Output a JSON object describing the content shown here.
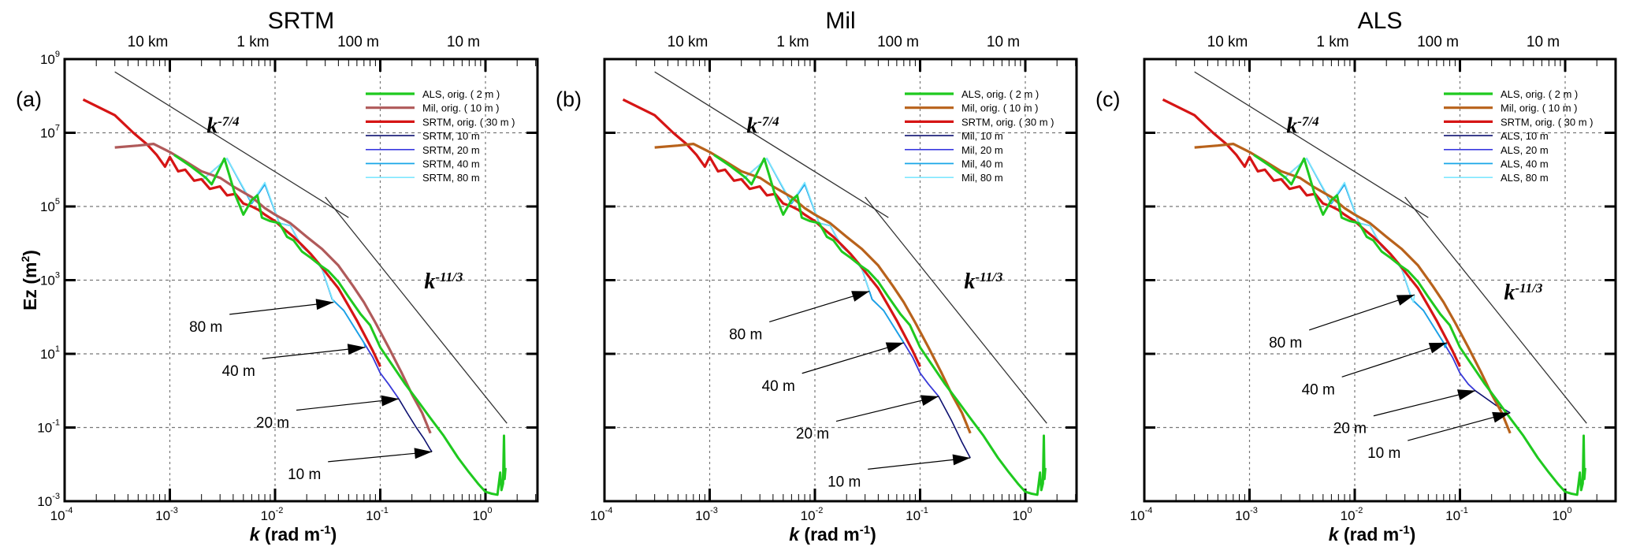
{
  "chart_data": [
    {
      "type": "line",
      "panel": "(a)",
      "title": "SRTM",
      "xlabel": "k (rad m-1)",
      "ylabel": "Ez (m2)",
      "xscale": "log",
      "yscale": "log",
      "xlim": [
        0.0001,
        3.1
      ],
      "ylim": [
        0.001,
        1000000000
      ],
      "grid": true,
      "legend_position": "top-right",
      "x_ticks": [
        "10^-4",
        "10^-3",
        "10^-2",
        "10^-1",
        "10^0"
      ],
      "y_ticks": [
        "10^-3",
        "10^-1",
        "10^1",
        "10^3",
        "10^5",
        "10^7",
        "10^9"
      ],
      "top_axis_labels": [
        "10 km",
        "1 km",
        "100 m",
        "10 m"
      ],
      "series_ref": "a",
      "legend": [
        "ALS, orig. ( 2 m )",
        "Mil, orig. ( 10 m )",
        "SRTM, orig. ( 30 m )",
        "SRTM, 10 m",
        "SRTM, 20 m",
        "SRTM, 40 m",
        "SRTM, 80 m"
      ],
      "slope_labels": [
        {
          "base": "k",
          "exp": "-7/4",
          "at": [
            0.0032,
            10000000
          ]
        },
        {
          "base": "k",
          "exp": "-11/3",
          "at": [
            0.4,
            600
          ]
        }
      ],
      "annotations": [
        {
          "text": "80 m",
          "arrow_to": [
            0.036,
            250
          ],
          "text_at": [
            0.0022,
            40
          ]
        },
        {
          "text": "40 m",
          "arrow_to": [
            0.072,
            15
          ],
          "text_at": [
            0.0045,
            2.5
          ]
        },
        {
          "text": "20 m",
          "arrow_to": [
            0.15,
            0.6
          ],
          "text_at": [
            0.0095,
            0.1
          ]
        },
        {
          "text": "10 m",
          "arrow_to": [
            0.31,
            0.022
          ],
          "text_at": [
            0.019,
            0.004
          ]
        }
      ]
    },
    {
      "type": "line",
      "panel": "(b)",
      "title": "Mil",
      "xlabel": "k (rad m-1)",
      "ylabel": "",
      "xscale": "log",
      "yscale": "log",
      "xlim": [
        0.0001,
        3.1
      ],
      "ylim": [
        0.001,
        1000000000
      ],
      "grid": true,
      "legend_position": "top-right",
      "x_ticks": [
        "10^-4",
        "10^-3",
        "10^-2",
        "10^-1",
        "10^0"
      ],
      "top_axis_labels": [
        "10 km",
        "1 km",
        "100 m",
        "10 m"
      ],
      "series_ref": "b",
      "legend": [
        "ALS, orig. ( 2 m )",
        "Mil, orig. ( 10 m )",
        "SRTM, orig. ( 30 m )",
        "Mil, 10 m",
        "Mil, 20 m",
        "Mil, 40 m",
        "Mil, 80 m"
      ],
      "slope_labels": [
        {
          "base": "k",
          "exp": "-7/4",
          "at": [
            0.0032,
            10000000
          ]
        },
        {
          "base": "k",
          "exp": "-11/3",
          "at": [
            0.4,
            600
          ]
        }
      ],
      "annotations": [
        {
          "text": "80 m",
          "arrow_to": [
            0.033,
            500
          ],
          "text_at": [
            0.0022,
            25
          ]
        },
        {
          "text": "40 m",
          "arrow_to": [
            0.07,
            20
          ],
          "text_at": [
            0.0045,
            1
          ]
        },
        {
          "text": "20 m",
          "arrow_to": [
            0.15,
            0.7
          ],
          "text_at": [
            0.0095,
            0.05
          ]
        },
        {
          "text": "10 m",
          "arrow_to": [
            0.3,
            0.015
          ],
          "text_at": [
            0.019,
            0.0025
          ]
        }
      ]
    },
    {
      "type": "line",
      "panel": "(c)",
      "title": "ALS",
      "xlabel": "k (rad m-1)",
      "ylabel": "",
      "xscale": "log",
      "yscale": "log",
      "xlim": [
        0.0001,
        3.1
      ],
      "ylim": [
        0.001,
        1000000000
      ],
      "grid": true,
      "legend_position": "top-right",
      "x_ticks": [
        "10^-4",
        "10^-3",
        "10^-2",
        "10^-1",
        "10^0"
      ],
      "top_axis_labels": [
        "10 km",
        "1 km",
        "100 m",
        "10 m"
      ],
      "series_ref": "c",
      "legend": [
        "ALS, orig. ( 2 m )",
        "Mil, orig. ( 10 m )",
        "SRTM, orig. ( 30 m )",
        "ALS, 10 m",
        "ALS, 20 m",
        "ALS, 40 m",
        "ALS, 80 m"
      ],
      "slope_labels": [
        {
          "base": "k",
          "exp": "-7/4",
          "at": [
            0.0032,
            10000000
          ]
        },
        {
          "base": "k",
          "exp": "-11/3",
          "at": [
            0.4,
            300
          ]
        }
      ],
      "annotations": [
        {
          "text": "80 m",
          "arrow_to": [
            0.037,
            400
          ],
          "text_at": [
            0.0022,
            15
          ]
        },
        {
          "text": "40 m",
          "arrow_to": [
            0.075,
            20
          ],
          "text_at": [
            0.0045,
            0.8
          ]
        },
        {
          "text": "20 m",
          "arrow_to": [
            0.14,
            1
          ],
          "text_at": [
            0.009,
            0.07
          ]
        },
        {
          "text": "10 m",
          "arrow_to": [
            0.3,
            0.25
          ],
          "text_at": [
            0.019,
            0.015
          ]
        }
      ]
    }
  ],
  "series": {
    "als_orig": {
      "name": "ALS, orig. ( 2 m )",
      "color": "#1fc91f",
      "x": [
        0.0011,
        0.0016,
        0.0022,
        0.0025,
        0.0033,
        0.0042,
        0.005,
        0.006,
        0.0068,
        0.0075,
        0.009,
        0.011,
        0.013,
        0.015,
        0.018,
        0.022,
        0.027,
        0.032,
        0.04,
        0.05,
        0.065,
        0.08,
        0.1,
        0.13,
        0.17,
        0.22,
        0.3,
        0.4,
        0.55,
        0.7,
        0.85,
        1.0,
        1.15,
        1.3,
        1.38,
        1.42,
        1.47,
        1.5,
        1.52,
        1.55
      ],
      "y": [
        2500000,
        1200000,
        600000,
        400000,
        2000000,
        200000,
        60000,
        150000,
        200000,
        50000,
        40000,
        35000,
        15000,
        12000,
        6000,
        4000,
        2500,
        1800,
        900,
        350,
        120,
        60,
        15,
        5,
        1.6,
        0.6,
        0.18,
        0.06,
        0.015,
        0.006,
        0.003,
        0.0018,
        0.0016,
        0.0015,
        0.006,
        0.002,
        0.003,
        0.06,
        0.004,
        0.008
      ]
    },
    "mil_orig": {
      "name": "Mil, orig. ( 10 m )",
      "x": [
        0.0003,
        0.0005,
        0.0007,
        0.001,
        0.0014,
        0.002,
        0.003,
        0.004,
        0.006,
        0.008,
        0.01,
        0.014,
        0.02,
        0.028,
        0.04,
        0.055,
        0.07,
        0.09,
        0.12,
        0.16,
        0.2,
        0.25,
        0.3
      ],
      "y": [
        4000000,
        4500000,
        5000000,
        3000000,
        1700000,
        900000,
        600000,
        350000,
        180000,
        90000,
        60000,
        35000,
        15000,
        7000,
        2500,
        700,
        250,
        70,
        15,
        3,
        0.8,
        0.25,
        0.07
      ]
    },
    "srtm_orig": {
      "name": "SRTM, orig. ( 30 m )",
      "color": "#d61515",
      "x": [
        0.00015,
        0.0003,
        0.00045,
        0.0006,
        0.00075,
        0.0009,
        0.001,
        0.0012,
        0.0014,
        0.0017,
        0.002,
        0.0024,
        0.003,
        0.0035,
        0.0042,
        0.005,
        0.006,
        0.007,
        0.008,
        0.01,
        0.012,
        0.015,
        0.018,
        0.022,
        0.027,
        0.033,
        0.04,
        0.05,
        0.06,
        0.07,
        0.085,
        0.1
      ],
      "y": [
        80000000,
        30000000,
        10000000,
        5000000,
        2500000,
        1200000,
        2200000,
        900000,
        1000000,
        500000,
        550000,
        300000,
        350000,
        200000,
        220000,
        120000,
        100000,
        80000,
        60000,
        40000,
        25000,
        15000,
        9000,
        5000,
        2500,
        1200,
        600,
        200,
        80,
        35,
        12,
        4.5
      ]
    },
    "r10": {
      "name": "10 m",
      "color": "#0d1070",
      "x": [
        0.002,
        0.0035,
        0.006,
        0.008,
        0.011,
        0.014,
        0.018,
        0.022,
        0.028,
        0.035,
        0.045,
        0.055,
        0.07,
        0.085,
        0.1,
        0.12,
        0.15,
        0.18,
        0.22,
        0.26,
        0.3,
        0.31
      ],
      "y": [
        500000,
        2000000,
        120000,
        400000,
        35000,
        30000,
        8000,
        5000,
        2000,
        300,
        150,
        60,
        20,
        8,
        3,
        1.5,
        0.6,
        0.25,
        0.1,
        0.05,
        0.025,
        0.022
      ]
    },
    "r20": {
      "name": "20 m",
      "color": "#3a3ae0",
      "x": [
        0.002,
        0.0035,
        0.006,
        0.008,
        0.011,
        0.014,
        0.018,
        0.022,
        0.028,
        0.035,
        0.045,
        0.055,
        0.07,
        0.085,
        0.1,
        0.12,
        0.15
      ],
      "y": [
        500000,
        2000000,
        120000,
        400000,
        35000,
        30000,
        8000,
        5000,
        2000,
        300,
        150,
        60,
        20,
        8,
        3,
        1.5,
        0.6
      ]
    },
    "r40": {
      "name": "40 m",
      "color": "#19a6e8",
      "x": [
        0.002,
        0.0035,
        0.006,
        0.008,
        0.011,
        0.014,
        0.018,
        0.022,
        0.028,
        0.035,
        0.045,
        0.055,
        0.07,
        0.072
      ],
      "y": [
        500000,
        2000000,
        120000,
        400000,
        35000,
        30000,
        8000,
        5000,
        2000,
        300,
        150,
        60,
        20,
        15
      ]
    },
    "r80": {
      "name": "80 m",
      "color": "#7fe8ff",
      "x": [
        0.002,
        0.0035,
        0.006,
        0.008,
        0.011,
        0.014,
        0.018,
        0.022,
        0.028,
        0.036
      ],
      "y": [
        500000,
        2000000,
        130000,
        450000,
        35000,
        30000,
        8000,
        5000,
        2000,
        250
      ]
    },
    "mil_colors": {
      "a": "#b05a5a",
      "b": "#b8621b",
      "c": "#b8621b"
    },
    "resampled_end_override": {
      "b": {
        "r10": [
          [
            0.15,
            0.7
          ],
          [
            0.2,
            0.15
          ],
          [
            0.25,
            0.04
          ],
          [
            0.3,
            0.015
          ]
        ],
        "r20_end": [
          0.15,
          0.7
        ],
        "r40_end": [
          0.07,
          20
        ],
        "r80_end": [
          0.033,
          500
        ]
      },
      "c": {
        "r10": [
          [
            0.14,
            1
          ],
          [
            0.18,
            0.6
          ],
          [
            0.22,
            0.4
          ],
          [
            0.27,
            0.3
          ],
          [
            0.3,
            0.25
          ]
        ],
        "r20_end": [
          0.14,
          1
        ],
        "r40_end": [
          0.075,
          20
        ],
        "r80_end": [
          0.037,
          400
        ]
      }
    },
    "slope_lines": {
      "k_-7/4": {
        "x": [
          0.0003,
          0.05
        ],
        "y": [
          450000000,
          50000
        ]
      },
      "k_-11/3": {
        "x": [
          0.03,
          1.6
        ],
        "y": [
          180000,
          0.13
        ]
      }
    }
  }
}
